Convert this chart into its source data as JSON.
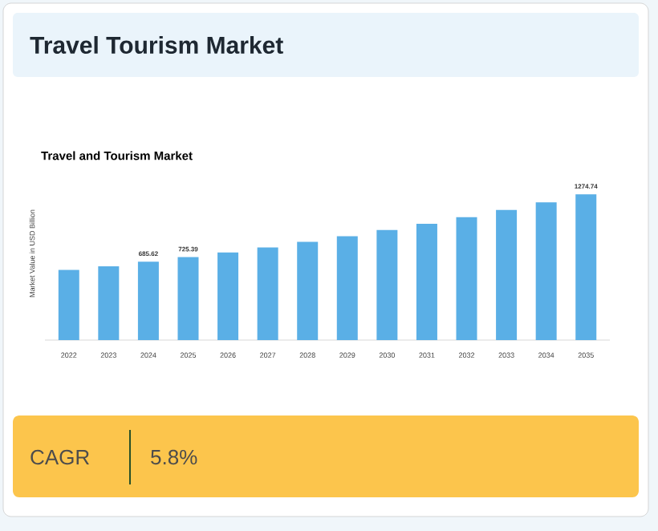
{
  "chart_data": {
    "type": "bar",
    "title": "Travel Tourism Market",
    "subtitle": "Travel and Tourism Market",
    "ylabel": "Market Value in USD Billion",
    "categories": [
      "2022",
      "2023",
      "2024",
      "2025",
      "2026",
      "2027",
      "2028",
      "2029",
      "2030",
      "2031",
      "2032",
      "2033",
      "2034",
      "2035"
    ],
    "values": [
      613,
      644,
      685.62,
      725.39,
      765,
      810,
      859,
      908,
      962,
      1016,
      1074,
      1137,
      1204,
      1274.74
    ],
    "value_labels": [
      null,
      null,
      "685.62",
      "725.39",
      null,
      null,
      null,
      null,
      null,
      null,
      null,
      null,
      null,
      "1274.74"
    ],
    "color": "#5aafe6",
    "annotations": [
      "CAGR",
      "5.8%"
    ]
  }
}
